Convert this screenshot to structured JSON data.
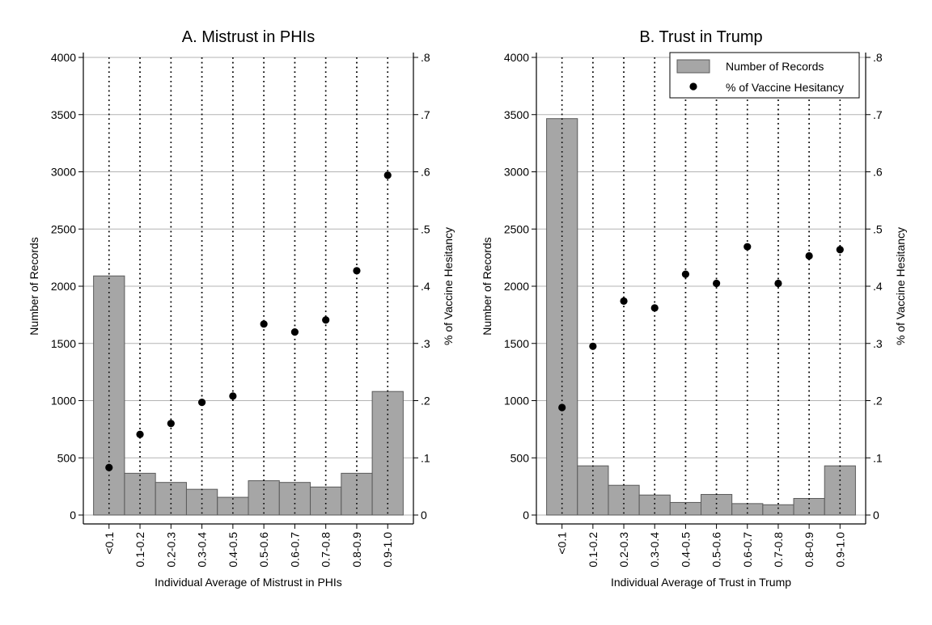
{
  "chart_data": [
    {
      "type": "bar",
      "title": "A. Mistrust in PHIs",
      "xlabel": "Individual Average of Mistrust in PHIs",
      "ylabel": "Number of Records",
      "y2label": "% of Vaccine Hesitancy",
      "categories": [
        "<0.1",
        "0.1-0.2",
        "0.2-0.3",
        "0.3-0.4",
        "0.4-0.5",
        "0.5-0.6",
        "0.6-0.7",
        "0.7-0.8",
        "0.8-0.9",
        "0.9-1.0"
      ],
      "ylim": [
        0,
        4000
      ],
      "yticks": [
        0,
        500,
        1000,
        1500,
        2000,
        2500,
        3000,
        3500,
        4000
      ],
      "y2lim": [
        0,
        0.8
      ],
      "y2ticks": [
        0,
        0.1,
        0.2,
        0.3,
        0.4,
        0.5,
        0.6,
        0.7,
        0.8
      ],
      "y2ticklabels": [
        "0",
        ".1",
        ".2",
        ".3",
        ".4",
        ".5",
        ".6",
        ".7",
        ".8"
      ],
      "series": [
        {
          "name": "Number of Records",
          "type": "bar",
          "axis": "left",
          "color": "#a6a6a6",
          "values": [
            2090,
            365,
            285,
            225,
            155,
            300,
            285,
            245,
            365,
            1080
          ]
        },
        {
          "name": "% of Vaccine Hesitancy",
          "type": "scatter",
          "axis": "right",
          "color": "#000000",
          "values": [
            0.083,
            0.141,
            0.16,
            0.197,
            0.208,
            0.334,
            0.32,
            0.341,
            0.427,
            0.594
          ]
        }
      ],
      "legend": null,
      "grid": true
    },
    {
      "type": "bar",
      "title": "B. Trust in Trump",
      "xlabel": "Individual Average of Trust in Trump",
      "ylabel": "Number of Records",
      "y2label": "% of Vaccine Hesitancy",
      "categories": [
        "<0.1",
        "0.1-0.2",
        "0.2-0.3",
        "0.3-0.4",
        "0.4-0.5",
        "0.5-0.6",
        "0.6-0.7",
        "0.7-0.8",
        "0.8-0.9",
        "0.9-1.0"
      ],
      "ylim": [
        0,
        4000
      ],
      "yticks": [
        0,
        500,
        1000,
        1500,
        2000,
        2500,
        3000,
        3500,
        4000
      ],
      "y2lim": [
        0,
        0.8
      ],
      "y2ticks": [
        0,
        0.1,
        0.2,
        0.3,
        0.4,
        0.5,
        0.6,
        0.7,
        0.8
      ],
      "y2ticklabels": [
        "0",
        ".1",
        ".2",
        ".3",
        ".4",
        ".5",
        ".6",
        ".7",
        ".8"
      ],
      "series": [
        {
          "name": "Number of Records",
          "type": "bar",
          "axis": "left",
          "color": "#a6a6a6",
          "values": [
            3465,
            430,
            260,
            175,
            110,
            180,
            100,
            90,
            145,
            430
          ]
        },
        {
          "name": "% of Vaccine Hesitancy",
          "type": "scatter",
          "axis": "right",
          "color": "#000000",
          "values": [
            0.188,
            0.295,
            0.374,
            0.362,
            0.421,
            0.405,
            0.469,
            0.405,
            0.453,
            0.464
          ]
        }
      ],
      "legend": {
        "position": "top-right",
        "entries": [
          "Number of Records",
          "% of Vaccine Hesitancy"
        ]
      },
      "grid": true
    }
  ]
}
